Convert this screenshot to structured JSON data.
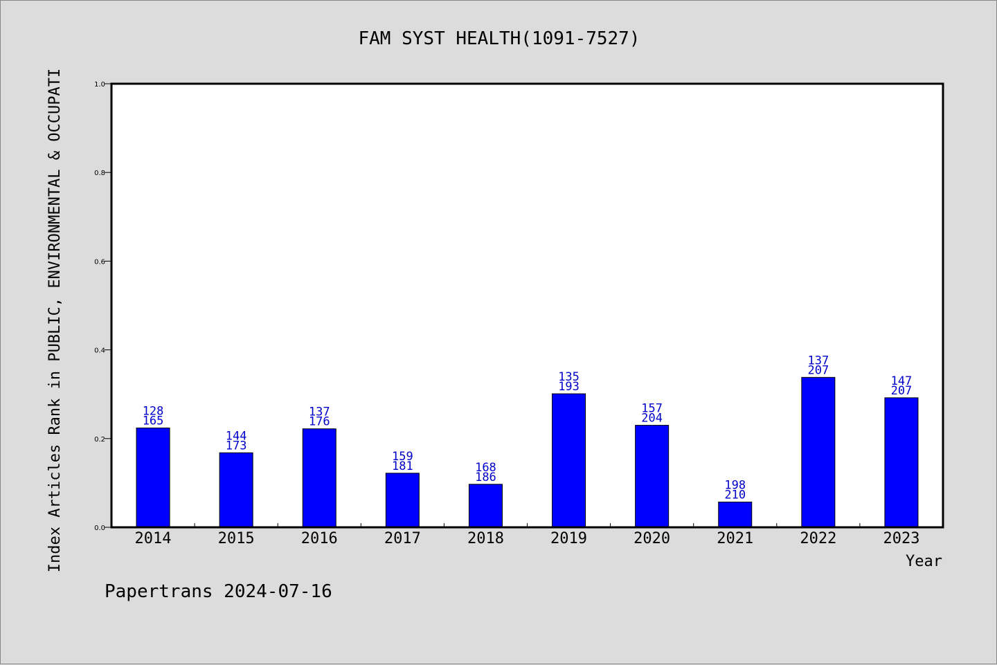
{
  "chart_data": {
    "type": "bar",
    "title": "FAM SYST HEALTH(1091-7527)",
    "xlabel": "Year",
    "ylabel": "Index Articles Rank in PUBLIC, ENVIRONMENTAL & OCCUPATI",
    "ylim": [
      0,
      1.0
    ],
    "yticks": [
      "0.0",
      "0.2",
      "0.4",
      "0.6",
      "0.8",
      "1.0"
    ],
    "categories": [
      "2014",
      "2015",
      "2016",
      "2017",
      "2018",
      "2019",
      "2020",
      "2021",
      "2022",
      "2023"
    ],
    "values": [
      0.224,
      0.168,
      0.222,
      0.122,
      0.097,
      0.301,
      0.23,
      0.057,
      0.338,
      0.292
    ],
    "labels_top": [
      "128",
      "144",
      "137",
      "159",
      "168",
      "135",
      "157",
      "198",
      "137",
      "147"
    ],
    "labels_bottom": [
      "165",
      "173",
      "176",
      "181",
      "186",
      "193",
      "204",
      "210",
      "207",
      "207"
    ],
    "bar_color": "#0000ff",
    "label_color": "#0000cc",
    "grid": false
  },
  "footer": "Papertrans 2024-07-16"
}
